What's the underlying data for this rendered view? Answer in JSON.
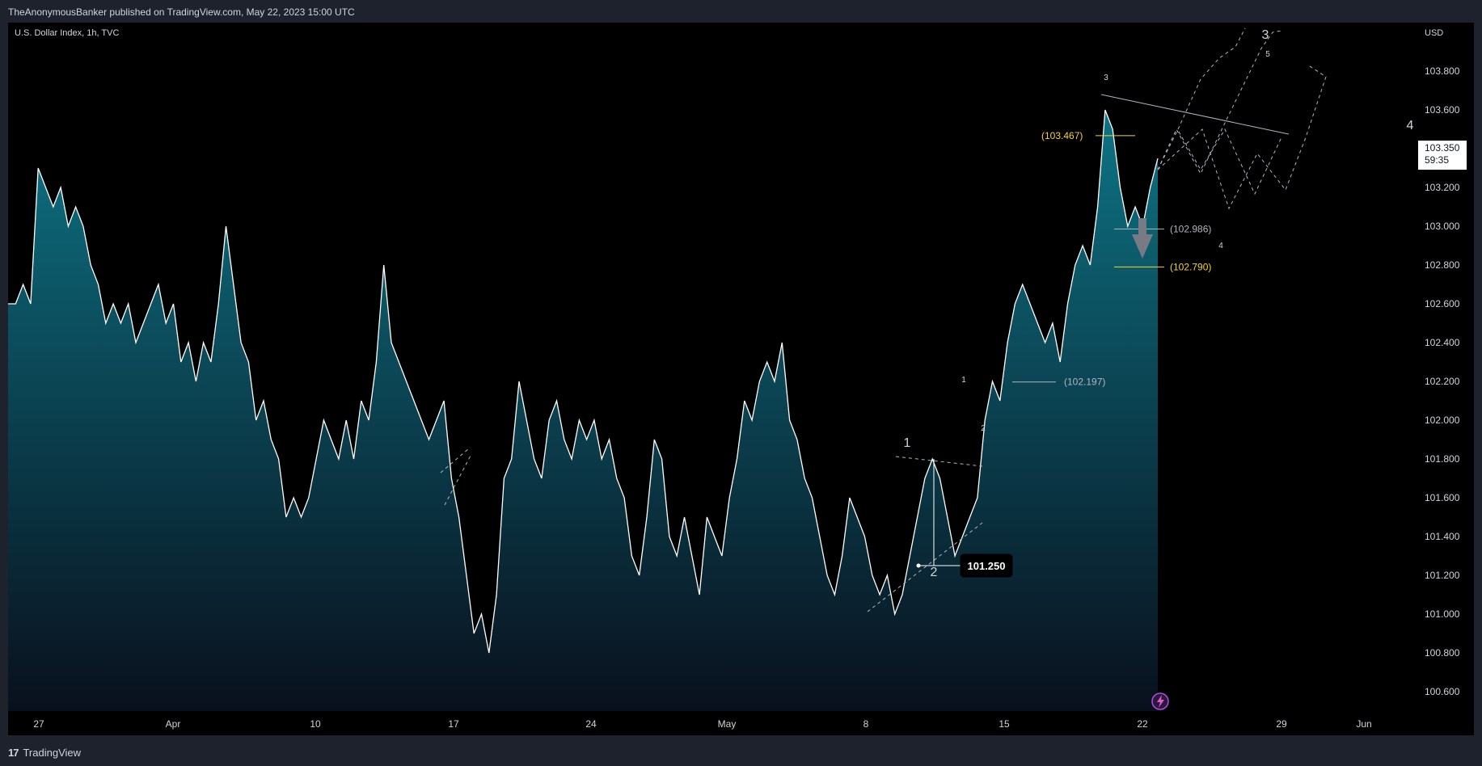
{
  "publisher": "TheAnonymousBanker published on TradingView.com, May 22, 2023 15:00 UTC",
  "symbol": "U.S. Dollar Index, 1h, TVC",
  "currency": "USD",
  "brand": "TradingView",
  "last_price": "103.350",
  "countdown": "59:35",
  "chart_data": {
    "type": "line",
    "title": "U.S. Dollar Index, 1h, TVC",
    "ylim": [
      100.5,
      104.0
    ],
    "y_ticks": [
      "103.800",
      "103.600",
      "103.400",
      "103.200",
      "103.000",
      "102.800",
      "102.600",
      "102.400",
      "102.200",
      "102.000",
      "101.800",
      "101.600",
      "101.400",
      "101.200",
      "101.000",
      "100.800",
      "100.600"
    ],
    "x_ticks": [
      "27",
      "Apr",
      "10",
      "17",
      "24",
      "May",
      "8",
      "15",
      "22",
      "29",
      "Jun"
    ],
    "series": [
      {
        "values": [
          102.6,
          102.6,
          102.7,
          102.6,
          103.3,
          103.2,
          103.1,
          103.2,
          103.0,
          103.1,
          103.0,
          102.8,
          102.7,
          102.5,
          102.6,
          102.5,
          102.6,
          102.4,
          102.5,
          102.6,
          102.7,
          102.5,
          102.6,
          102.3,
          102.4,
          102.2,
          102.4,
          102.3,
          102.6,
          103.0,
          102.7,
          102.4,
          102.3,
          102.0,
          102.1,
          101.9,
          101.8,
          101.5,
          101.6,
          101.5,
          101.6,
          101.8,
          102.0,
          101.9,
          101.8,
          102.0,
          101.8,
          102.1,
          102.0,
          102.3,
          102.8,
          102.4,
          102.3,
          102.2,
          102.1,
          102.0,
          101.9,
          102.0,
          102.1,
          101.7,
          101.5,
          101.2,
          100.9,
          101.0,
          100.8,
          101.1,
          101.7,
          101.8,
          102.2,
          102.0,
          101.8,
          101.7,
          102.0,
          102.1,
          101.9,
          101.8,
          102.0,
          101.9,
          102.0,
          101.8,
          101.9,
          101.7,
          101.6,
          101.3,
          101.2,
          101.5,
          101.9,
          101.8,
          101.4,
          101.3,
          101.5,
          101.3,
          101.1,
          101.5,
          101.4,
          101.3,
          101.6,
          101.8,
          102.1,
          102.0,
          102.2,
          102.3,
          102.2,
          102.4,
          102.0,
          101.9,
          101.7,
          101.6,
          101.4,
          101.2,
          101.1,
          101.3,
          101.6,
          101.5,
          101.4,
          101.2,
          101.1,
          101.2,
          101.0,
          101.1,
          101.3,
          101.5,
          101.7,
          101.8,
          101.7,
          101.5,
          101.3,
          101.4,
          101.5,
          101.6,
          102.0,
          102.2,
          102.1,
          102.4,
          102.6,
          102.7,
          102.6,
          102.5,
          102.4,
          102.5,
          102.3,
          102.6,
          102.8,
          102.9,
          102.8,
          103.1,
          103.6,
          103.5,
          103.2,
          103.0,
          103.1,
          103.0,
          103.2,
          103.35
        ]
      }
    ],
    "annotations": {
      "levels": [
        {
          "label": "(103.467)",
          "value": 103.467,
          "color": "#f5d432"
        },
        {
          "label": "(102.986)",
          "value": 102.986,
          "color": "#b2b5be"
        },
        {
          "label": "(102.790)",
          "value": 102.79,
          "color": "#f5d432"
        },
        {
          "label": "(102.197)",
          "value": 102.197,
          "color": "#b2b5be"
        }
      ],
      "marker_label": "101.250",
      "wave_labels": [
        "1",
        "2",
        "1",
        "2",
        "3",
        "3",
        "4",
        "5",
        "4"
      ]
    }
  },
  "colors": {
    "background": "#000000",
    "line": "#ffffff",
    "area_top": "#0e7a8c",
    "level_yellow": "#f5d432",
    "level_grey": "#b2b5be"
  }
}
